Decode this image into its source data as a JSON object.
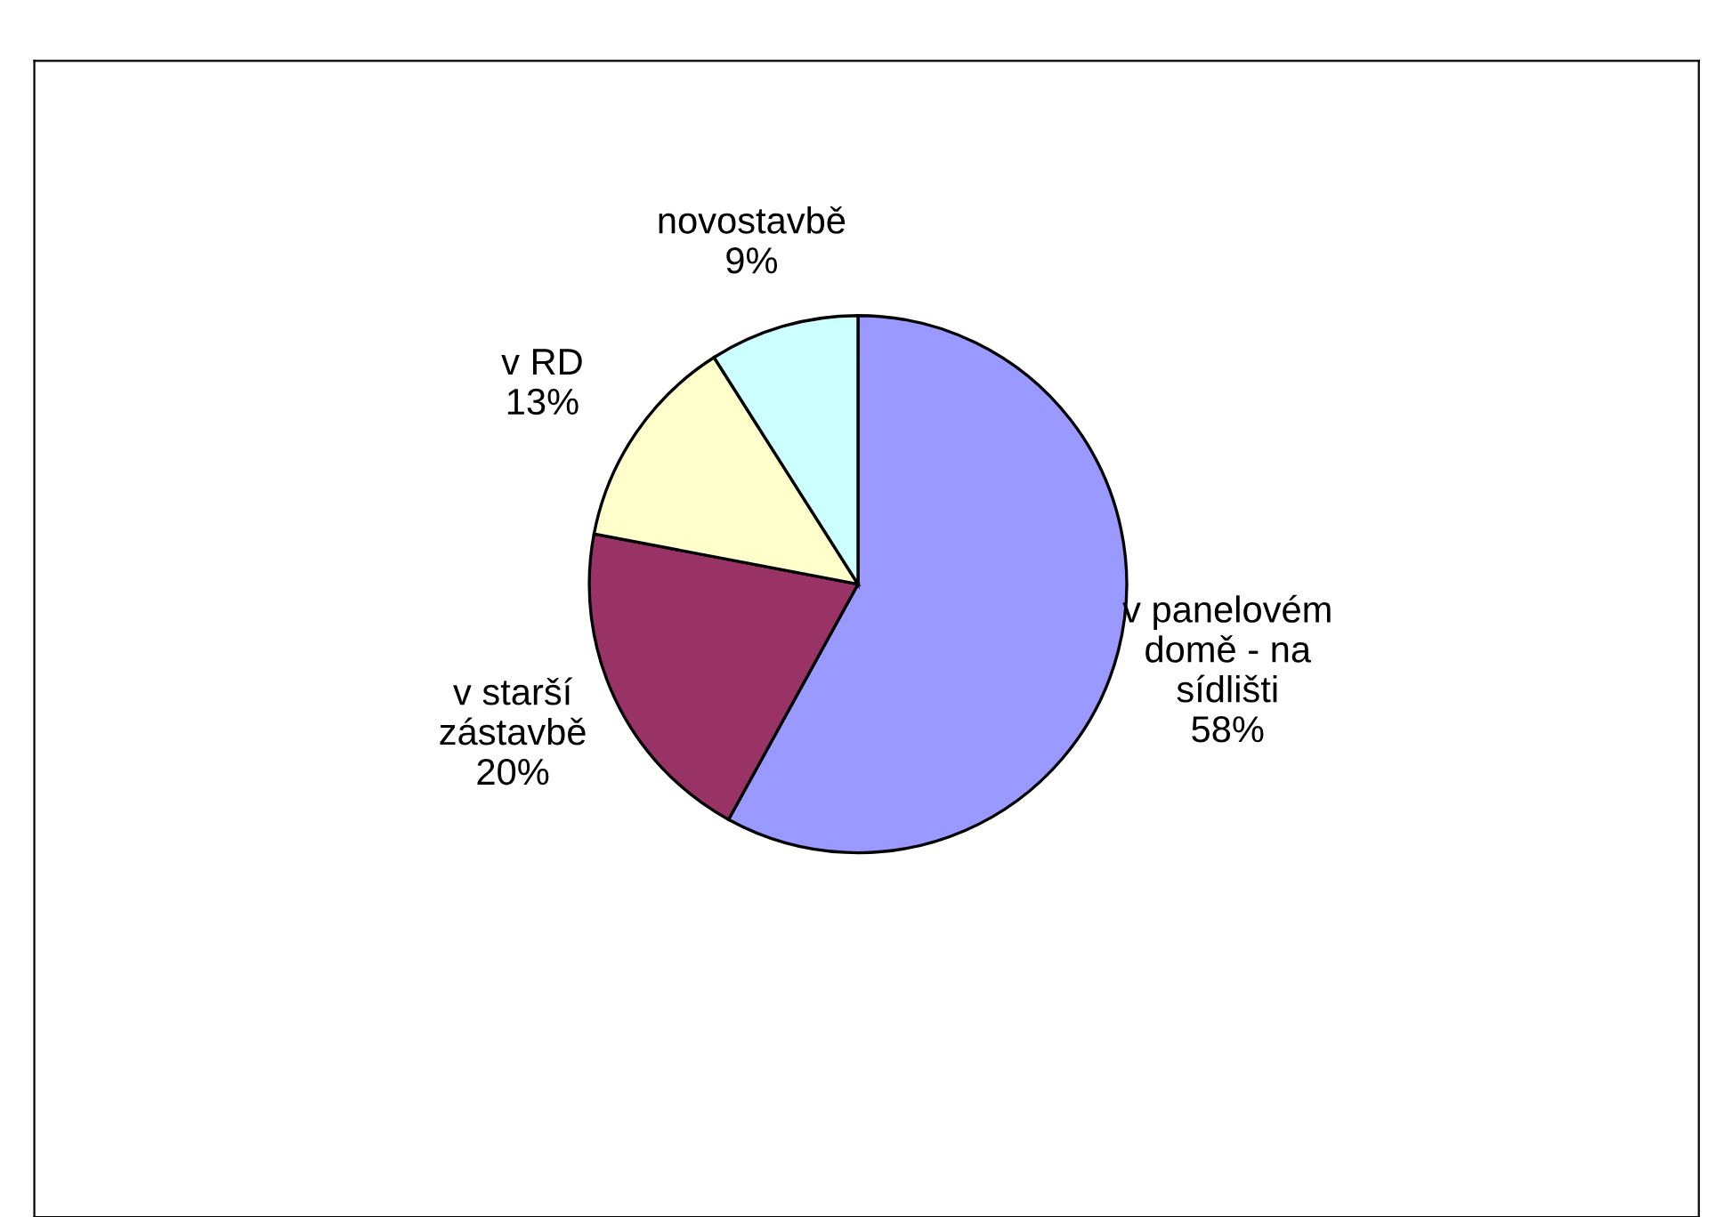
{
  "chart_data": {
    "type": "pie",
    "categories": [
      "v panelovém\ndomě - na\nsídlišti",
      "v starší\nzástavbě",
      "v RD",
      "novostavbě"
    ],
    "values": [
      58,
      20,
      13,
      9
    ],
    "value_labels": [
      "58%",
      "20%",
      "13%",
      "9%"
    ],
    "colors": [
      "#9999ff",
      "#993366",
      "#ffffcc",
      "#ccffff"
    ]
  }
}
